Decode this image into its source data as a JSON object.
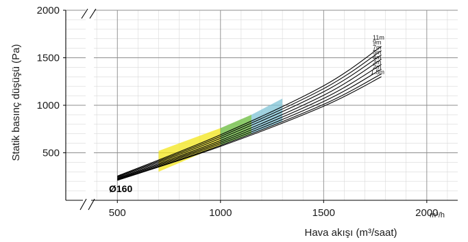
{
  "chart_data": {
    "type": "line",
    "title": "",
    "xlabel": "Hava akışı (m³/saat)",
    "ylabel": "Statik basınç düşüşü (Pa)",
    "x_unit_label": "m³/h",
    "annotation": "Ø160",
    "xlim": [
      250,
      2150
    ],
    "ylim": [
      0,
      2000
    ],
    "xticks": [
      500,
      1000,
      1500,
      2000
    ],
    "xtick_labels": [
      "500",
      "1000",
      "1500",
      "2000"
    ],
    "yticks": [
      500,
      1000,
      1500,
      2000
    ],
    "ytick_labels": [
      "500",
      "1000",
      "1500",
      "2000"
    ],
    "grid": true,
    "x_minor_step": 100,
    "y_minor_step": 100,
    "axis_break": true,
    "line_color": "#000000",
    "series": [
      {
        "name": "11m",
        "x": [
          500,
          1000,
          1500,
          1780
        ],
        "y": [
          255,
          690,
          1205,
          1620
        ]
      },
      {
        "name": "9m",
        "x": [
          500,
          1000,
          1500,
          1780
        ],
        "y": [
          248,
          672,
          1175,
          1575
        ]
      },
      {
        "name": "7m",
        "x": [
          500,
          1000,
          1500,
          1780
        ],
        "y": [
          240,
          652,
          1142,
          1530
        ]
      },
      {
        "name": "5m",
        "x": [
          500,
          1000,
          1500,
          1780
        ],
        "y": [
          232,
          630,
          1105,
          1485
        ]
      },
      {
        "name": "4m",
        "x": [
          500,
          1000,
          1500,
          1780
        ],
        "y": [
          226,
          612,
          1072,
          1430
        ]
      },
      {
        "name": "3m",
        "x": [
          500,
          1000,
          1500,
          1780
        ],
        "y": [
          220,
          595,
          1040,
          1380
        ]
      },
      {
        "name": "2m",
        "x": [
          500,
          1000,
          1500,
          1780
        ],
        "y": [
          214,
          578,
          1010,
          1330
        ]
      },
      {
        "name": "1.5m",
        "x": [
          500,
          1000,
          1500,
          1780
        ],
        "y": [
          210,
          568,
          990,
          1300
        ]
      }
    ],
    "bands": [
      {
        "color": "#f3e61a",
        "polygon": [
          [
            700,
            300
          ],
          [
            1000,
            580
          ],
          [
            1000,
            760
          ],
          [
            700,
            520
          ]
        ]
      },
      {
        "color": "#67b93a",
        "polygon": [
          [
            1000,
            580
          ],
          [
            1150,
            700
          ],
          [
            1150,
            900
          ],
          [
            1000,
            760
          ]
        ]
      },
      {
        "color": "#7fc3d6",
        "polygon": [
          [
            1150,
            700
          ],
          [
            1300,
            830
          ],
          [
            1300,
            1070
          ],
          [
            1150,
            900
          ]
        ]
      }
    ]
  }
}
